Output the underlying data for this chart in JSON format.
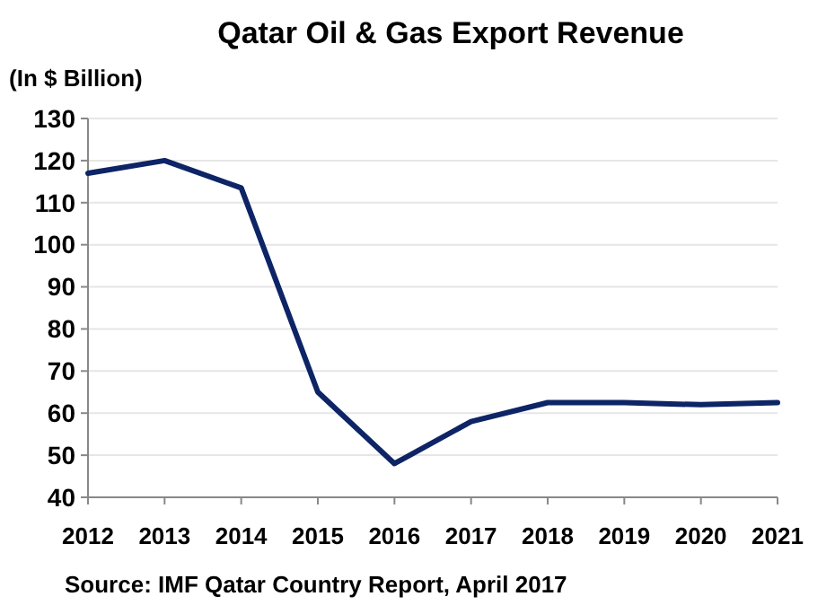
{
  "chart_data": {
    "type": "line",
    "title": "Qatar Oil & Gas Export  Revenue",
    "ylabel": "(In $ Billion)",
    "annotations": [
      "Source: IMF Qatar Country Report, April 2017"
    ],
    "x": [
      2012,
      2013,
      2014,
      2015,
      2016,
      2017,
      2018,
      2019,
      2020,
      2021
    ],
    "series": [
      {
        "color": "#0d2466",
        "values": [
          117,
          120,
          113.5,
          65,
          48,
          58,
          62.5,
          62.5,
          62,
          62.5
        ]
      }
    ],
    "xlim": [
      2012,
      2021
    ],
    "xticks": [
      2012,
      2013,
      2014,
      2015,
      2016,
      2017,
      2018,
      2019,
      2020,
      2021
    ],
    "ylim": [
      40,
      130
    ],
    "yticks": [
      40,
      50,
      60,
      70,
      80,
      90,
      100,
      110,
      120,
      130
    ],
    "grid": "y",
    "marker": "none",
    "line_style": "solid"
  }
}
